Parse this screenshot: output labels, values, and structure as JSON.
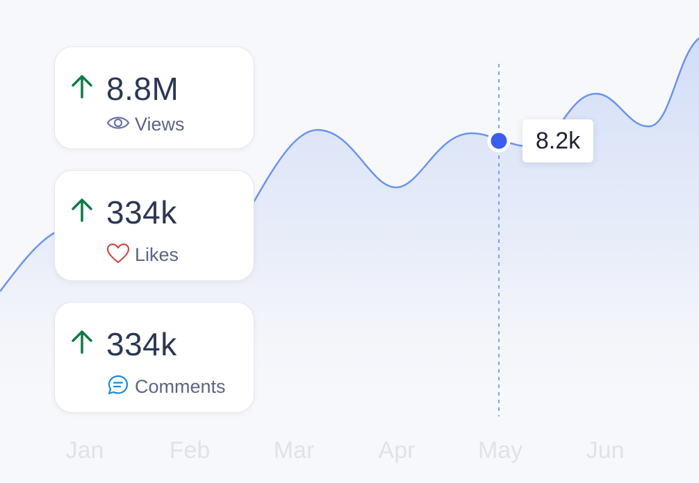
{
  "chart_data": {
    "type": "area",
    "categories": [
      "Jan",
      "Feb",
      "Mar",
      "Apr",
      "May",
      "Jun"
    ],
    "highlight": {
      "category": "May",
      "value_label": "8.2k"
    },
    "grid": false,
    "colors": {
      "line": "#6b93ea",
      "fill": "#d2ddf8",
      "marker": "#3d5cf0",
      "guide": "#5b84ee"
    }
  },
  "stats": [
    {
      "value": "8.8M",
      "label": "Views",
      "icon": "eye-icon",
      "trend": "up"
    },
    {
      "value": "334k",
      "label": "Likes",
      "icon": "heart-icon",
      "trend": "up"
    },
    {
      "value": "334k",
      "label": "Comments",
      "icon": "comment-icon",
      "trend": "up"
    }
  ],
  "colors": {
    "trend_up": "#0f7a45",
    "views_icon": "#6a72a8",
    "likes_icon": "#d04848",
    "comments_icon": "#1a88d8"
  }
}
